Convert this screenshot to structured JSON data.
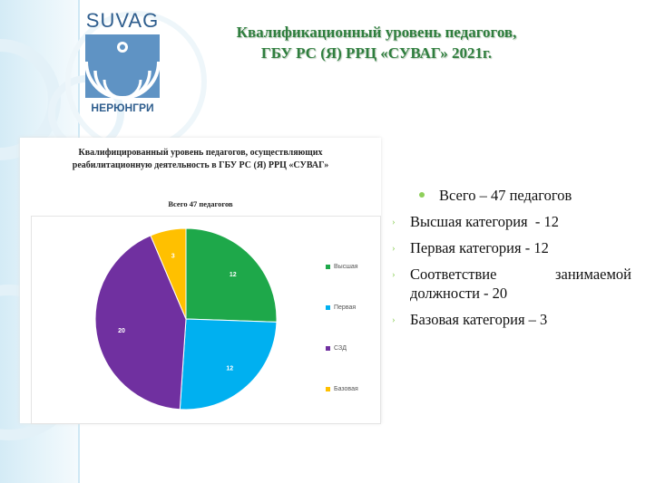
{
  "logo": {
    "top_text": "SUVAG",
    "bottom_text": "НЕРЮНГРИ"
  },
  "slide": {
    "title_line1": "Квалификационный уровень педагогов,",
    "title_line2": "ГБУ РС (Я) РРЦ «СУВАГ» 2021г."
  },
  "chart_data": {
    "type": "pie",
    "title_line1": "Квалифицированный уровень педагогов, осуществляющих",
    "title_line2": "реабилитационную деятельность в ГБУ РС (Я) РРЦ «СУВАГ»",
    "subtitle": "Всего 47 педагогов",
    "categories": [
      "Высшая",
      "Первая",
      "СЗД",
      "Базовая"
    ],
    "values": [
      12,
      12,
      20,
      3
    ],
    "colors": [
      "#1ea84a",
      "#00b0f0",
      "#7030a0",
      "#ffc000"
    ],
    "data_labels": [
      "12",
      "12",
      "20",
      "3"
    ],
    "legend_position": "right"
  },
  "bullets": {
    "item1": "Всего – 47 педагогов",
    "item2": "Высшая категория  - 12",
    "item3": "Первая категория - 12",
    "item4_line1": "Соответствие   занимаемой",
    "item4_line2": "должности - 20",
    "item5": "Базовая категория – 3"
  },
  "colors": {
    "title_green": "#2f7e3e",
    "bullet_green": "#8ecf5a",
    "logo_blue": "#2f5e8e"
  }
}
